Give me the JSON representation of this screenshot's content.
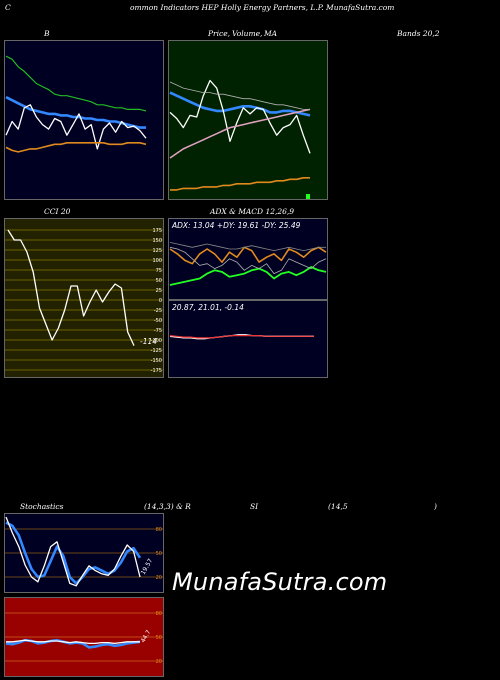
{
  "header": {
    "c": "C",
    "title": "ommon  Indicators HEP Holly Energy Partners, L.P. MunafaSutra.com"
  },
  "row1": {
    "b_label": "B",
    "price_label": "Price,",
    "volume_label": "Volume,",
    "ma_label": "MA",
    "bands_label": "Bands 20,2"
  },
  "row2": {
    "cci_label": "CCI 20",
    "adx_label": "ADX  & MACD 12,26,9",
    "adx_values": "ADX: 13.04  +DY: 19.61 -DY: 25.49",
    "macd_values": "20.87,  21.01,  -0.14",
    "cci_value": "-114"
  },
  "row3": {
    "stoch_label": "Stochastics",
    "stoch_params": "(14,3,3) & R",
    "si_label": "SI",
    "rsi_params": "(14,5",
    "close_paren": ")",
    "stoch_value": "19.57",
    "rsi_value": "44.7"
  },
  "watermark": "MunafaSutra.com",
  "colors": {
    "panel_navy": "#000022",
    "panel_green": "#002200",
    "panel_olive": "#222200",
    "panel_red": "#990000",
    "blue": "#3388ff",
    "orange": "#e08a1e",
    "green": "#22bb22",
    "bright_green": "#22ff22"
  },
  "chart_data": [
    {
      "type": "line",
      "panel": "bollinger-bands",
      "ylim": [
        0,
        100
      ],
      "series": [
        {
          "color": "green",
          "values": [
            92,
            90,
            85,
            82,
            78,
            74,
            72,
            70,
            67,
            66,
            66,
            65,
            64,
            63,
            62,
            60,
            60,
            59,
            58,
            58,
            57,
            57,
            57,
            56
          ]
        },
        {
          "color": "blue",
          "values": [
            65,
            63,
            61,
            59,
            57,
            56,
            55,
            54,
            54,
            53,
            53,
            52,
            52,
            51,
            51,
            50,
            50,
            49,
            49,
            48,
            47,
            46,
            45,
            45
          ]
        },
        {
          "color": "white",
          "values": [
            40,
            49,
            44,
            58,
            60,
            52,
            47,
            44,
            51,
            49,
            40,
            47,
            54,
            44,
            47,
            31,
            44,
            48,
            42,
            49,
            45,
            46,
            43,
            38
          ]
        },
        {
          "color": "orange",
          "values": [
            32,
            30,
            29,
            30,
            31,
            31,
            32,
            33,
            34,
            34,
            35,
            35,
            35,
            35,
            35,
            35,
            35,
            34,
            34,
            34,
            35,
            35,
            35,
            34
          ]
        }
      ]
    },
    {
      "type": "line",
      "panel": "price-ma-volume",
      "ylim": [
        0,
        100
      ],
      "series": [
        {
          "color": "blue",
          "values": [
            68,
            66,
            64,
            62,
            60,
            58,
            57,
            56,
            56,
            57,
            58,
            59,
            59,
            58,
            57,
            55,
            55,
            56,
            56,
            55,
            54,
            53
          ]
        },
        {
          "color": "white",
          "values": [
            55,
            51,
            45,
            53,
            52,
            66,
            76,
            71,
            56,
            36,
            48,
            58,
            54,
            58,
            57,
            48,
            40,
            45,
            47,
            53,
            40,
            28
          ]
        },
        {
          "color": "pink",
          "values": [
            25,
            28,
            31,
            33,
            35,
            37,
            39,
            41,
            43,
            45,
            46,
            47,
            48,
            49,
            50,
            51,
            52,
            53,
            54,
            55,
            56,
            57
          ]
        },
        {
          "color": "gray",
          "values": [
            75,
            73,
            71,
            70,
            69,
            68,
            68,
            67,
            67,
            66,
            65,
            64,
            64,
            63,
            62,
            61,
            60,
            60,
            59,
            58,
            57,
            57
          ]
        },
        {
          "color": "orange",
          "values": [
            4,
            4,
            5,
            5,
            5,
            6,
            6,
            6,
            7,
            7,
            8,
            8,
            8,
            9,
            9,
            9,
            10,
            10,
            11,
            11,
            12,
            12
          ]
        }
      ]
    },
    {
      "type": "line",
      "panel": "cci",
      "ylim": [
        -175,
        175
      ],
      "yticks": [
        175,
        150,
        125,
        100,
        75,
        50,
        25,
        0,
        -25,
        -50,
        -75,
        -100,
        -125,
        -150,
        -175
      ],
      "series": [
        {
          "color": "white",
          "values": [
            175,
            150,
            150,
            120,
            70,
            -20,
            -60,
            -100,
            -70,
            -25,
            35,
            35,
            -40,
            -5,
            25,
            -5,
            20,
            40,
            30,
            -80,
            -114
          ]
        }
      ]
    },
    {
      "type": "line",
      "panel": "adx",
      "ylim": [
        0,
        100
      ],
      "series": [
        {
          "color": "bright_green",
          "values": [
            28,
            30,
            32,
            34,
            36,
            42,
            46,
            44,
            38,
            40,
            42,
            46,
            48,
            44,
            36,
            42,
            44,
            40,
            44,
            50,
            46,
            44
          ]
        },
        {
          "color": "orange",
          "values": [
            72,
            66,
            58,
            54,
            66,
            72,
            66,
            56,
            68,
            62,
            74,
            70,
            56,
            62,
            66,
            58,
            72,
            68,
            62,
            70,
            74,
            68
          ]
        },
        {
          "color": "gray",
          "values": [
            74,
            72,
            68,
            60,
            52,
            54,
            48,
            52,
            60,
            56,
            46,
            52,
            48,
            54,
            42,
            46,
            60,
            56,
            52,
            48,
            56,
            60
          ]
        },
        {
          "color": "gray2",
          "values": [
            80,
            78,
            76,
            74,
            76,
            78,
            76,
            74,
            72,
            72,
            74,
            76,
            74,
            72,
            70,
            72,
            74,
            72,
            70,
            72,
            74,
            74
          ]
        }
      ]
    },
    {
      "type": "line",
      "panel": "macd",
      "ylim": [
        -30,
        60
      ],
      "series": [
        {
          "color": "white",
          "values": [
            21,
            20,
            19,
            19,
            18,
            18,
            19,
            20,
            21,
            22,
            23,
            23,
            22,
            22,
            21,
            21,
            21,
            21,
            21,
            21,
            21,
            21
          ]
        },
        {
          "color": "red",
          "values": [
            22,
            21,
            20,
            20,
            19,
            19,
            19,
            20,
            21,
            22,
            22,
            22,
            22,
            22,
            21,
            21,
            21,
            21,
            21,
            21,
            21,
            21
          ]
        }
      ]
    },
    {
      "type": "line",
      "panel": "stochastics",
      "ylim": [
        0,
        100
      ],
      "yticks": [
        80,
        50,
        20
      ],
      "series": [
        {
          "color": "blue",
          "values": [
            88,
            84,
            72,
            50,
            30,
            20,
            22,
            40,
            58,
            46,
            20,
            12,
            20,
            30,
            32,
            28,
            24,
            28,
            38,
            52,
            56,
            44
          ]
        },
        {
          "color": "white",
          "values": [
            95,
            75,
            58,
            35,
            20,
            14,
            34,
            58,
            64,
            38,
            12,
            9,
            22,
            34,
            28,
            24,
            22,
            30,
            46,
            60,
            52,
            20
          ]
        }
      ]
    },
    {
      "type": "line",
      "panel": "rsi",
      "ylim": [
        0,
        100
      ],
      "yticks": [
        80,
        50,
        20
      ],
      "series": [
        {
          "color": "blue",
          "values": [
            42,
            41,
            43,
            46,
            45,
            42,
            43,
            45,
            46,
            44,
            42,
            43,
            42,
            37,
            38,
            40,
            41,
            39,
            40,
            42,
            43,
            44
          ]
        },
        {
          "color": "white",
          "values": [
            44,
            44,
            45,
            46,
            45,
            44,
            44,
            45,
            45,
            44,
            43,
            44,
            43,
            42,
            42,
            43,
            43,
            42,
            43,
            44,
            44,
            44
          ]
        }
      ]
    }
  ]
}
